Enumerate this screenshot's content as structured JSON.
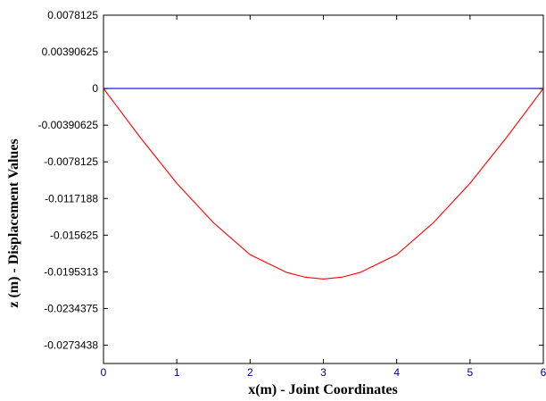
{
  "chart_data": {
    "type": "line",
    "title": "",
    "xlabel": "x(m) - Joint Coordinates",
    "ylabel": "z (m) - Displacement Values",
    "xlim": [
      0,
      6
    ],
    "ylim": [
      -0.029296875,
      0.0078125
    ],
    "x_ticks": [
      0,
      1,
      2,
      3,
      4,
      5,
      6
    ],
    "x_tick_labels": [
      "0",
      "1",
      "2",
      "3",
      "4",
      "5",
      "6"
    ],
    "y_ticks": [
      0.0078125,
      0.00390625,
      0,
      -0.00390625,
      -0.0078125,
      -0.0117188,
      -0.015625,
      -0.0195313,
      -0.0234375,
      -0.0273438
    ],
    "y_tick_labels": [
      "0.0078125",
      "0.00390625",
      "0",
      "-0.00390625",
      "-0.0078125",
      "-0.0117188",
      "-0.015625",
      "-0.0195313",
      "-0.0234375",
      "-0.0273438"
    ],
    "grid": false,
    "legend": "none",
    "series": [
      {
        "color": "#0000ff",
        "x": [
          0,
          6
        ],
        "y": [
          0,
          0
        ]
      },
      {
        "color": "#ff0000",
        "x": [
          0,
          0.5,
          1,
          1.5,
          2,
          2.5,
          2.75,
          3,
          3.25,
          3.5,
          4,
          4.5,
          5,
          5.5,
          6
        ],
        "y": [
          0,
          -0.0052,
          -0.0101,
          -0.0143,
          -0.0177,
          -0.0196,
          -0.0201,
          -0.0203,
          -0.0201,
          -0.0196,
          -0.0177,
          -0.0143,
          -0.0101,
          -0.0052,
          0
        ]
      }
    ]
  }
}
